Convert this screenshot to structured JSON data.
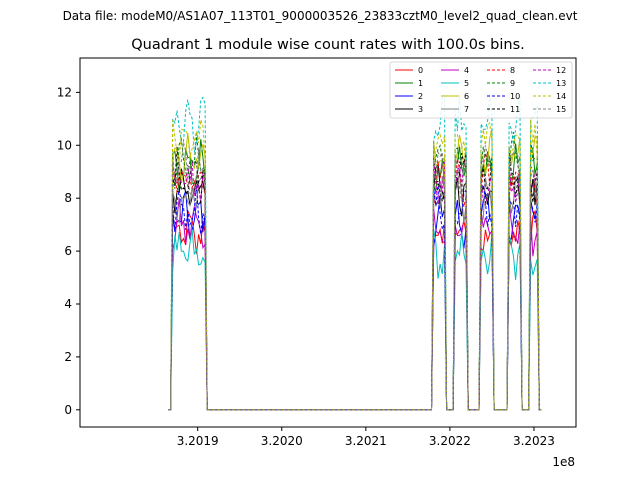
{
  "suptitle": "Data file: modeM0/AS1A07_113T01_9000003526_23833cztM0_level2_quad_clean.evt",
  "chart_data": {
    "type": "line",
    "title": "Quadrant 1 module wise count rates with 100.0s bins.",
    "xlabel": "",
    "ylabel": "",
    "x_offset_label": "1e8",
    "xlim": [
      3.20176,
      3.20235
    ],
    "ylim": [
      -0.65,
      13.3
    ],
    "x_ticks": [
      3.2019,
      3.202,
      3.2021,
      3.2022,
      3.2023
    ],
    "x_tick_labels": [
      "3.2019",
      "3.2020",
      "3.2021",
      "3.2022",
      "3.2023"
    ],
    "y_ticks": [
      0,
      2,
      4,
      6,
      8,
      10,
      12
    ],
    "y_tick_labels": [
      "0",
      "2",
      "4",
      "6",
      "8",
      "10",
      "12"
    ],
    "grid": false,
    "legend": {
      "placement": "top-right",
      "columns": 4
    },
    "active_segments": [
      [
        3.20187,
        3.20191
      ],
      [
        3.20218,
        3.202195
      ],
      [
        3.202205,
        3.20222
      ],
      [
        3.202235,
        3.20225
      ],
      [
        3.20227,
        3.202285
      ],
      [
        3.202295,
        3.202305
      ]
    ],
    "series": [
      {
        "name": "0",
        "color": "#ff0000",
        "style": "solid",
        "level": 6.6
      },
      {
        "name": "1",
        "color": "#008000",
        "style": "solid",
        "level": 9.2
      },
      {
        "name": "2",
        "color": "#0000ff",
        "style": "solid",
        "level": 7.2
      },
      {
        "name": "3",
        "color": "#000000",
        "style": "solid",
        "level": 8.4
      },
      {
        "name": "4",
        "color": "#bf00bf",
        "style": "solid",
        "level": 6.9
      },
      {
        "name": "5",
        "color": "#00bfbf",
        "style": "solid",
        "level": 5.8
      },
      {
        "name": "6",
        "color": "#bfbf00",
        "style": "solid",
        "level": 9.6
      },
      {
        "name": "7",
        "color": "#808080",
        "style": "solid",
        "level": 8.0
      },
      {
        "name": "8",
        "color": "#ff0000",
        "style": "dashed",
        "level": 8.8
      },
      {
        "name": "9",
        "color": "#008000",
        "style": "dashed",
        "level": 9.4
      },
      {
        "name": "10",
        "color": "#0000ff",
        "style": "dashed",
        "level": 7.6
      },
      {
        "name": "11",
        "color": "#000000",
        "style": "dashed",
        "level": 8.9
      },
      {
        "name": "12",
        "color": "#bf00bf",
        "style": "dashed",
        "level": 8.6
      },
      {
        "name": "13",
        "color": "#00bfbf",
        "style": "dashed",
        "level": 10.8
      },
      {
        "name": "14",
        "color": "#bfbf00",
        "style": "dashed",
        "level": 10.1
      },
      {
        "name": "15",
        "color": "#808080",
        "style": "dashed",
        "level": 9.0
      }
    ]
  }
}
